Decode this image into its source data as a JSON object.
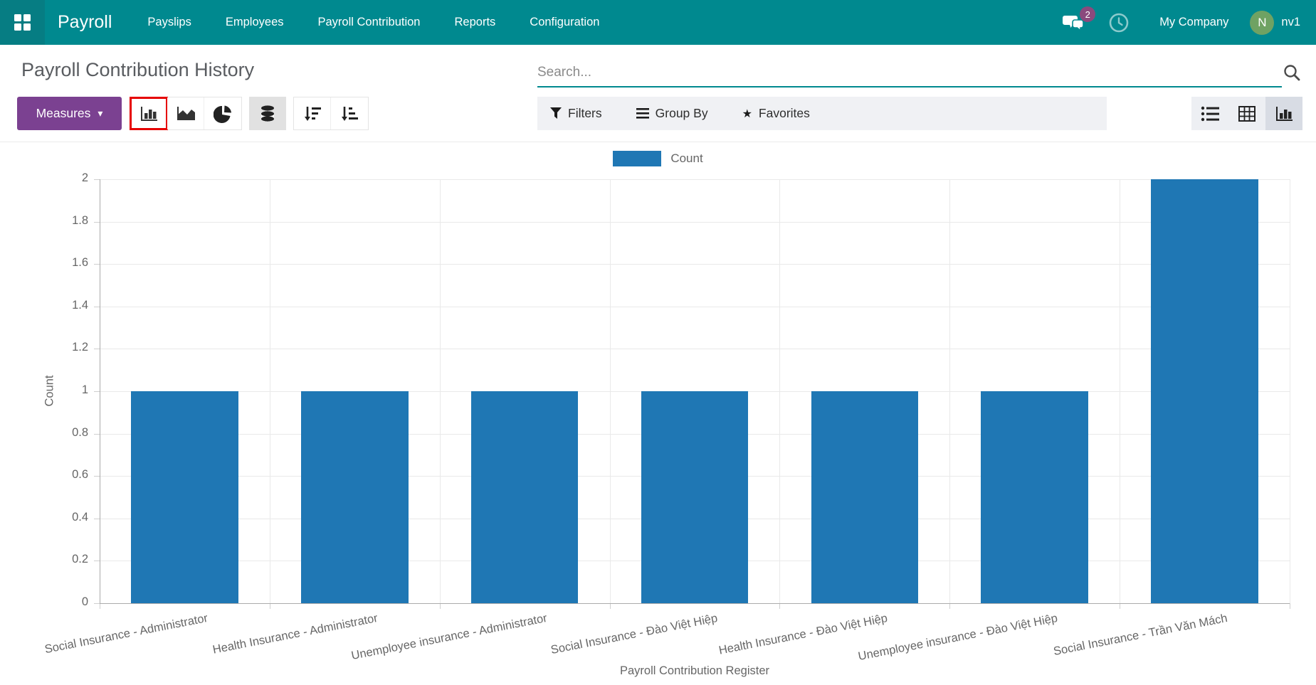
{
  "nav": {
    "app_name": "Payroll",
    "items": [
      "Payslips",
      "Employees",
      "Payroll Contribution",
      "Reports",
      "Configuration"
    ],
    "messages_badge": "2",
    "company": "My Company",
    "user_initial": "N",
    "user_name": "nv1"
  },
  "control_panel": {
    "title": "Payroll Contribution History",
    "search_placeholder": "Search...",
    "measures_label": "Measures",
    "filters_label": "Filters",
    "group_by_label": "Group By",
    "favorites_label": "Favorites"
  },
  "icons": {
    "apps": "grid-4-squares",
    "messages": "chat-bubbles",
    "activities": "clock",
    "search": "magnifier",
    "measures_caret": "▾",
    "bar_chart": "bar-chart",
    "area_chart": "area-chart",
    "pie_chart": "pie-chart",
    "stacked": "database-stack",
    "sort_desc": "arrow-down-wide-to-narrow",
    "sort_asc": "arrow-down-narrow-to-wide",
    "filters_funnel": "funnel",
    "group_by_glyph": "horizontal-bars",
    "favorites_star": "★",
    "view_list": "list",
    "view_pivot": "table-grid",
    "view_graph": "bar-chart"
  },
  "colors": {
    "nav_teal": "#00898f",
    "nav_teal_dark": "#067d83",
    "primary_purple": "#7b4191",
    "highlight_red": "#e60000",
    "bar_blue": "#1f77b4",
    "badge_purple": "#8a4a7d",
    "avatar_green": "#6fa263"
  },
  "chart_data": {
    "type": "bar",
    "title": "",
    "categories": [
      "Social Insurance - Administrator",
      "Health Insurance - Administrator",
      "Unemployee insurance - Administrator",
      "Social Insurance - Đào Việt Hiệp",
      "Health Insurance - Đào Việt Hiệp",
      "Unemployee insurance - Đào Việt Hiệp",
      "Social Insurance - Trần Văn Mách"
    ],
    "series": [
      {
        "name": "Count",
        "values": [
          1,
          1,
          1,
          1,
          1,
          1,
          2
        ]
      }
    ],
    "xlabel": "Payroll Contribution Register",
    "ylabel": "Count",
    "ylim": [
      0,
      2
    ],
    "ytick_step": 0.2,
    "grid": true,
    "legend_position": "top",
    "bar_color": "#1f77b4"
  }
}
